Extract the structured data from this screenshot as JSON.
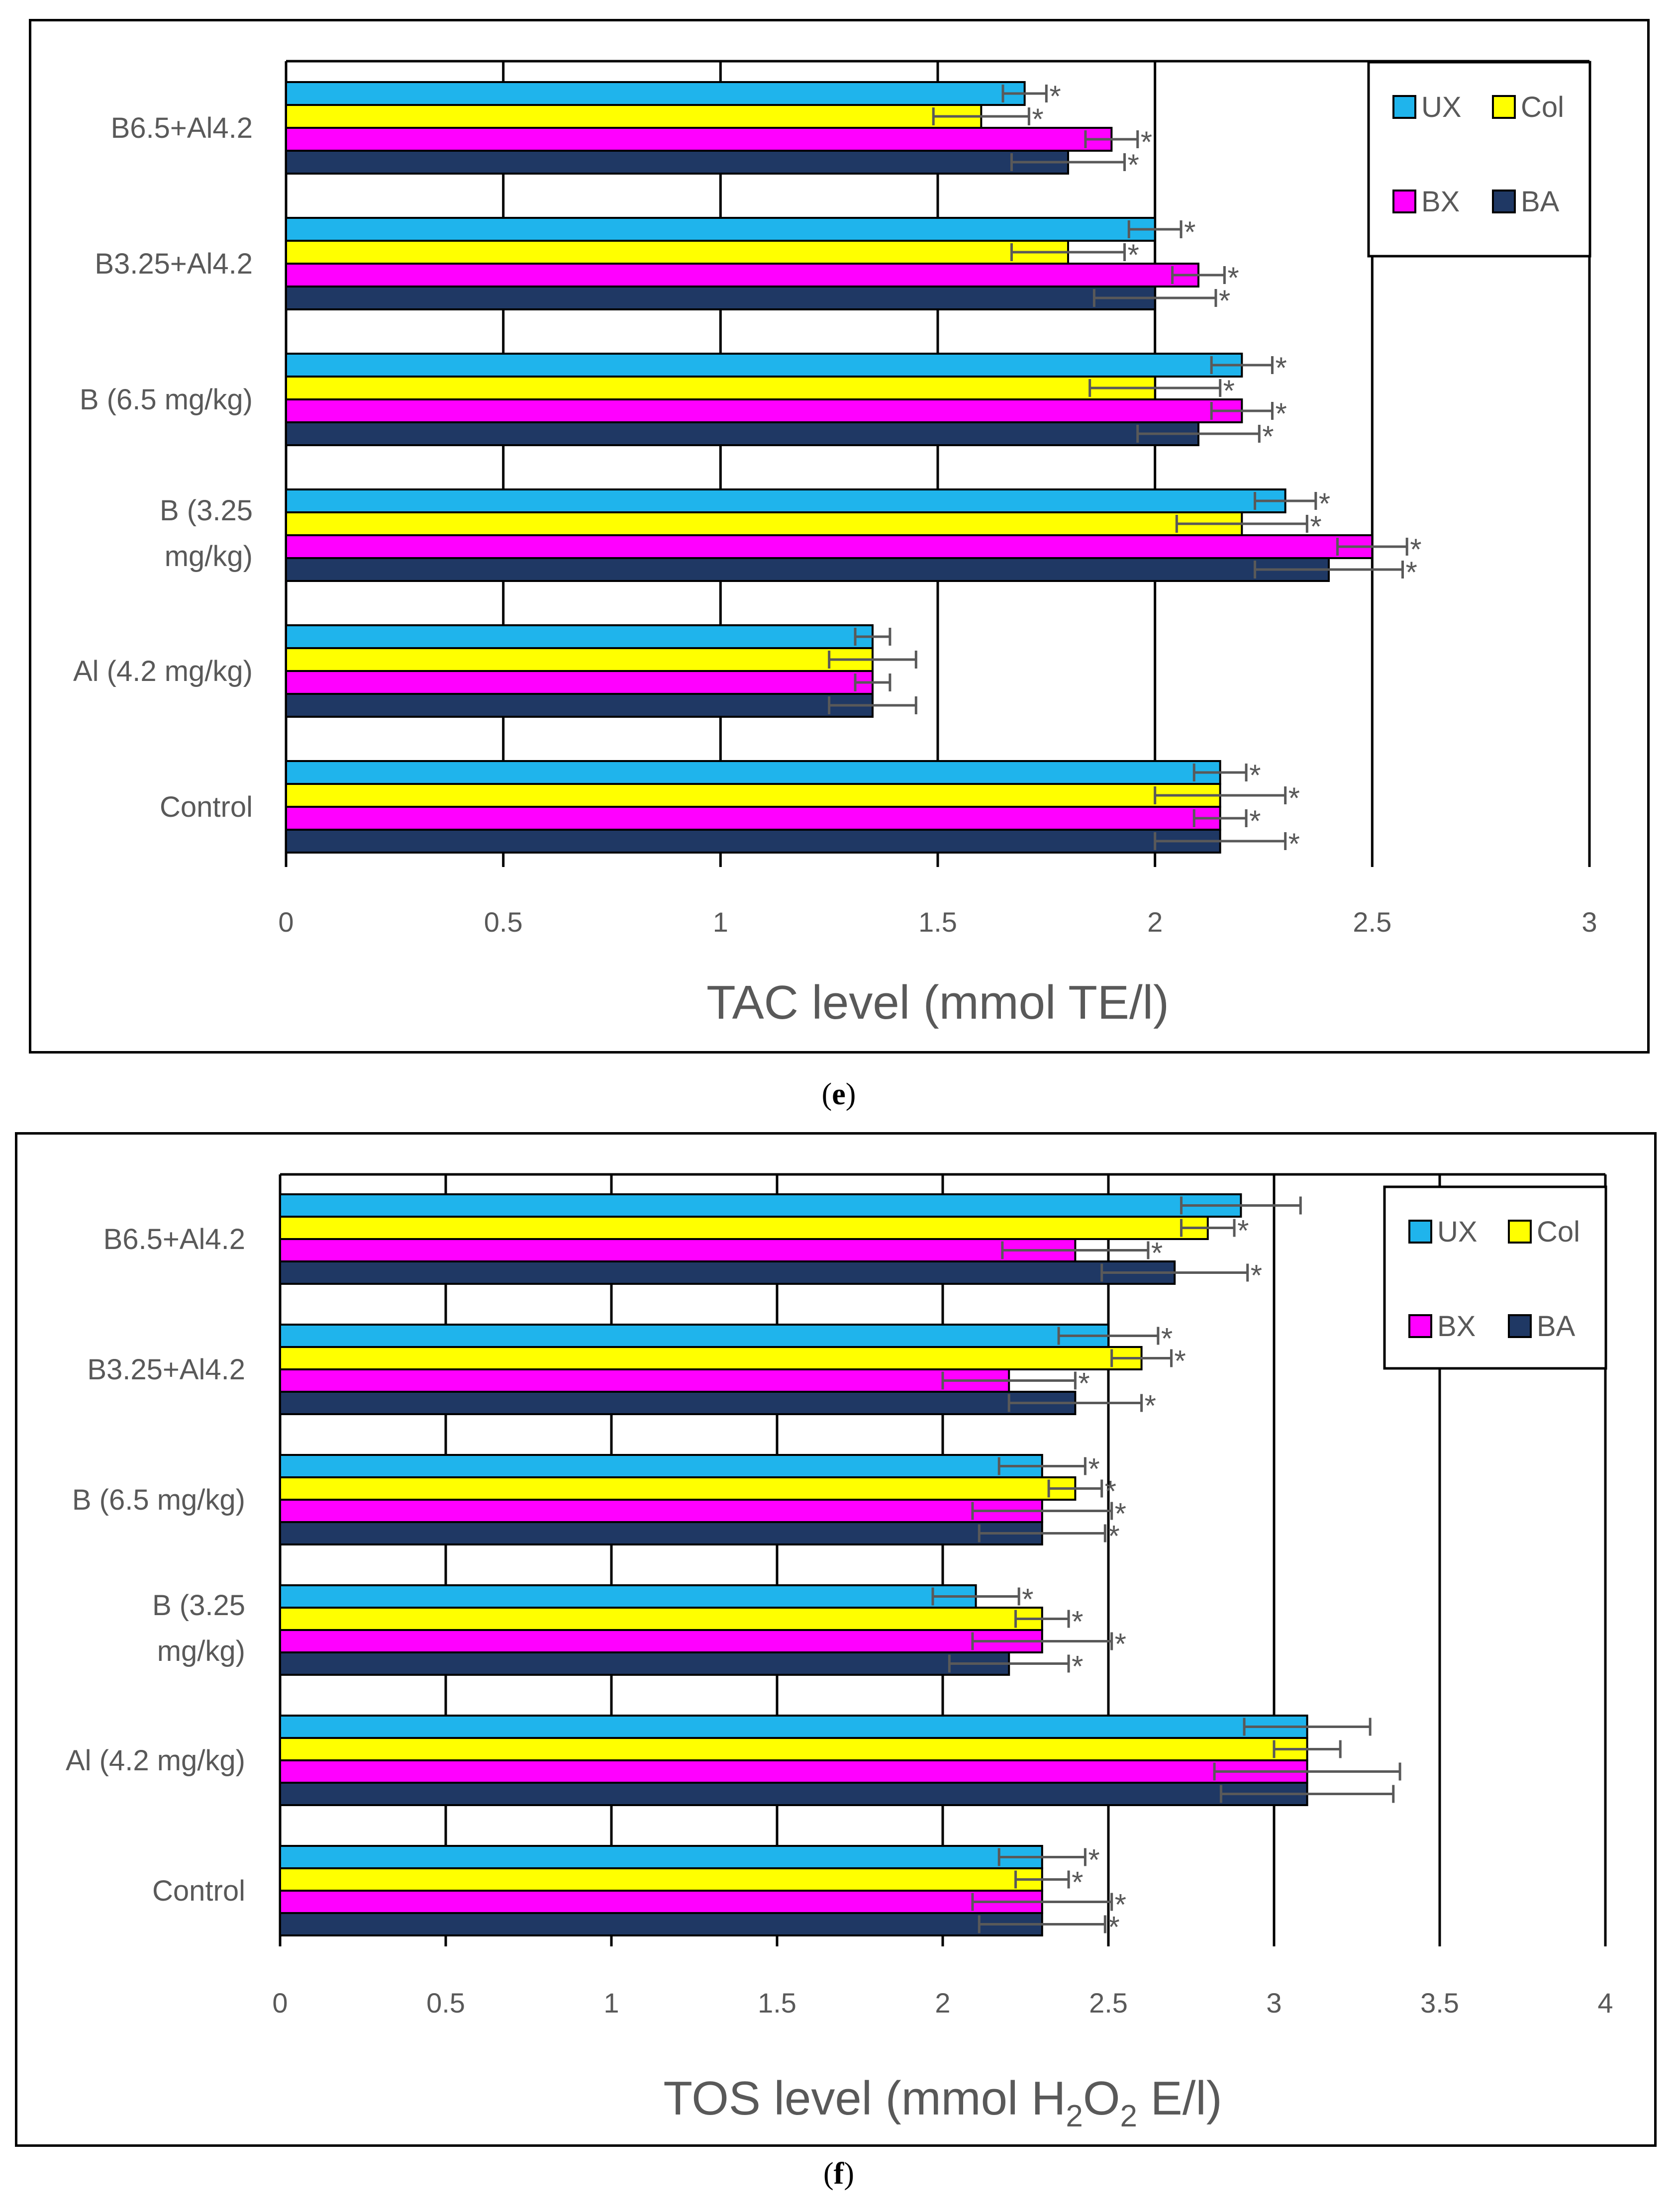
{
  "colors": {
    "UX": "#1fb4ec",
    "Col": "#ffff00",
    "BX": "#ff00ff",
    "BA": "#1f3864",
    "error": "#595959"
  },
  "chart_data": [
    {
      "type": "bar",
      "orientation": "horizontal",
      "panel_label": "e",
      "title": "",
      "xlabel": "TAC level (mmol TE/l)",
      "xlabel_parts": {
        "before": "TAC level (mmol TE/l)",
        "sub": "",
        "after": ""
      },
      "ylabel": "",
      "xlim": [
        0,
        3
      ],
      "ticks": [
        "0",
        "0.5",
        "1",
        "1.5",
        "2",
        "2.5",
        "3"
      ],
      "gridlines": [
        0.5,
        1,
        1.5,
        2,
        2.5,
        3
      ],
      "categories": [
        "B6.5+Al4.2",
        "B3.25+Al4.2",
        "B (6.5 mg/kg)",
        [
          "B (3.25",
          "mg/kg)"
        ],
        "Al (4.2 mg/kg)",
        "Control"
      ],
      "legend": {
        "placement": "top-right",
        "entries": [
          "UX",
          "Col",
          "BX",
          "BA"
        ]
      },
      "series": [
        {
          "name": "UX",
          "values": [
            1.7,
            2.0,
            2.2,
            2.3,
            1.35,
            2.15
          ],
          "errors": [
            0.05,
            0.06,
            0.07,
            0.07,
            0.04,
            0.06
          ],
          "marks": [
            "*",
            "*",
            "*",
            "*",
            "",
            "*"
          ]
        },
        {
          "name": "Col",
          "values": [
            1.6,
            1.8,
            2.0,
            2.2,
            1.35,
            2.15
          ],
          "errors": [
            0.11,
            0.13,
            0.15,
            0.15,
            0.1,
            0.15
          ],
          "marks": [
            "*",
            "*",
            "*",
            "*",
            "",
            "*"
          ]
        },
        {
          "name": "BX",
          "values": [
            1.9,
            2.1,
            2.2,
            2.5,
            1.35,
            2.15
          ],
          "errors": [
            0.06,
            0.06,
            0.07,
            0.08,
            0.04,
            0.06
          ],
          "marks": [
            "*",
            "*",
            "*",
            "*",
            "",
            "*"
          ]
        },
        {
          "name": "BA",
          "values": [
            1.8,
            2.0,
            2.1,
            2.4,
            1.35,
            2.15
          ],
          "errors": [
            0.13,
            0.14,
            0.14,
            0.17,
            0.1,
            0.15
          ],
          "marks": [
            "*",
            "*",
            "*",
            "*",
            "",
            "*"
          ]
        }
      ]
    },
    {
      "type": "bar",
      "orientation": "horizontal",
      "panel_label": "f",
      "title": "",
      "xlabel": "TOS level (mmol H2O2 E/l)",
      "xlabel_parts": {
        "before": "TOS level (mmol H",
        "sub": "2",
        "mid": "O",
        "sub2": "2",
        "after": " E/l)"
      },
      "ylabel": "",
      "xlim": [
        0,
        4
      ],
      "ticks": [
        "0",
        "0.5",
        "1",
        "1.5",
        "2",
        "2.5",
        "3",
        "3.5",
        "4"
      ],
      "gridlines": [
        0.5,
        1,
        1.5,
        2,
        2.5,
        3,
        3.5,
        4
      ],
      "categories": [
        "B6.5+Al4.2",
        "B3.25+Al4.2",
        "B (6.5 mg/kg)",
        [
          "B (3.25",
          "mg/kg)"
        ],
        "Al (4.2 mg/kg)",
        "Control"
      ],
      "legend": {
        "placement": "top-right",
        "entries": [
          "UX",
          "Col",
          "BX",
          "BA"
        ]
      },
      "series": [
        {
          "name": "UX",
          "values": [
            2.9,
            2.5,
            2.3,
            2.1,
            3.1,
            2.3
          ],
          "errors": [
            0.18,
            0.15,
            0.13,
            0.13,
            0.19,
            0.13
          ],
          "marks": [
            "",
            "*",
            "*",
            "*",
            "",
            "*"
          ]
        },
        {
          "name": "Col",
          "values": [
            2.8,
            2.6,
            2.4,
            2.3,
            3.1,
            2.3
          ],
          "errors": [
            0.08,
            0.09,
            0.08,
            0.08,
            0.1,
            0.08
          ],
          "marks": [
            "*",
            "*",
            "*",
            "*",
            "",
            "*"
          ]
        },
        {
          "name": "BX",
          "values": [
            2.4,
            2.2,
            2.3,
            2.3,
            3.1,
            2.3
          ],
          "errors": [
            0.22,
            0.2,
            0.21,
            0.21,
            0.28,
            0.21
          ],
          "marks": [
            "*",
            "*",
            "*",
            "*",
            "",
            "*"
          ]
        },
        {
          "name": "BA",
          "values": [
            2.7,
            2.4,
            2.3,
            2.2,
            3.1,
            2.3
          ],
          "errors": [
            0.22,
            0.2,
            0.19,
            0.18,
            0.26,
            0.19
          ],
          "marks": [
            "*",
            "*",
            "*",
            "*",
            "",
            "*"
          ]
        }
      ]
    }
  ]
}
